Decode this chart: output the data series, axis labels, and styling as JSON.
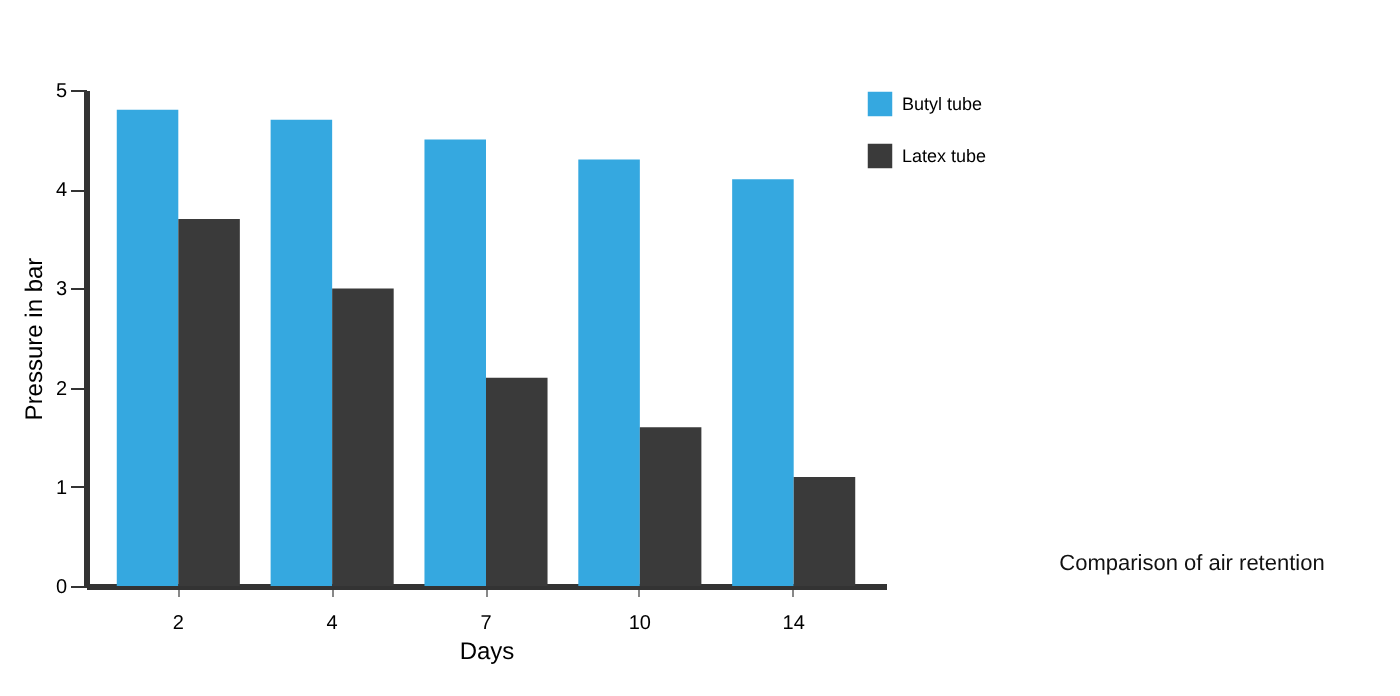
{
  "chart_data": {
    "type": "bar",
    "title": "Comparison of air retention",
    "xlabel": "Days",
    "ylabel": "Pressure in bar",
    "categories": [
      "2",
      "4",
      "7",
      "10",
      "14"
    ],
    "series": [
      {
        "name": "Butyl tube",
        "color": "#35a8e0",
        "values": [
          4.8,
          4.7,
          4.5,
          4.3,
          4.1
        ]
      },
      {
        "name": "Latex tube",
        "color": "#3a3a3a",
        "values": [
          3.7,
          3.0,
          2.1,
          1.6,
          1.1
        ]
      }
    ],
    "ylim": [
      0,
      5
    ],
    "yticks": [
      0,
      1,
      2,
      3,
      4,
      5
    ],
    "legend": "right"
  }
}
